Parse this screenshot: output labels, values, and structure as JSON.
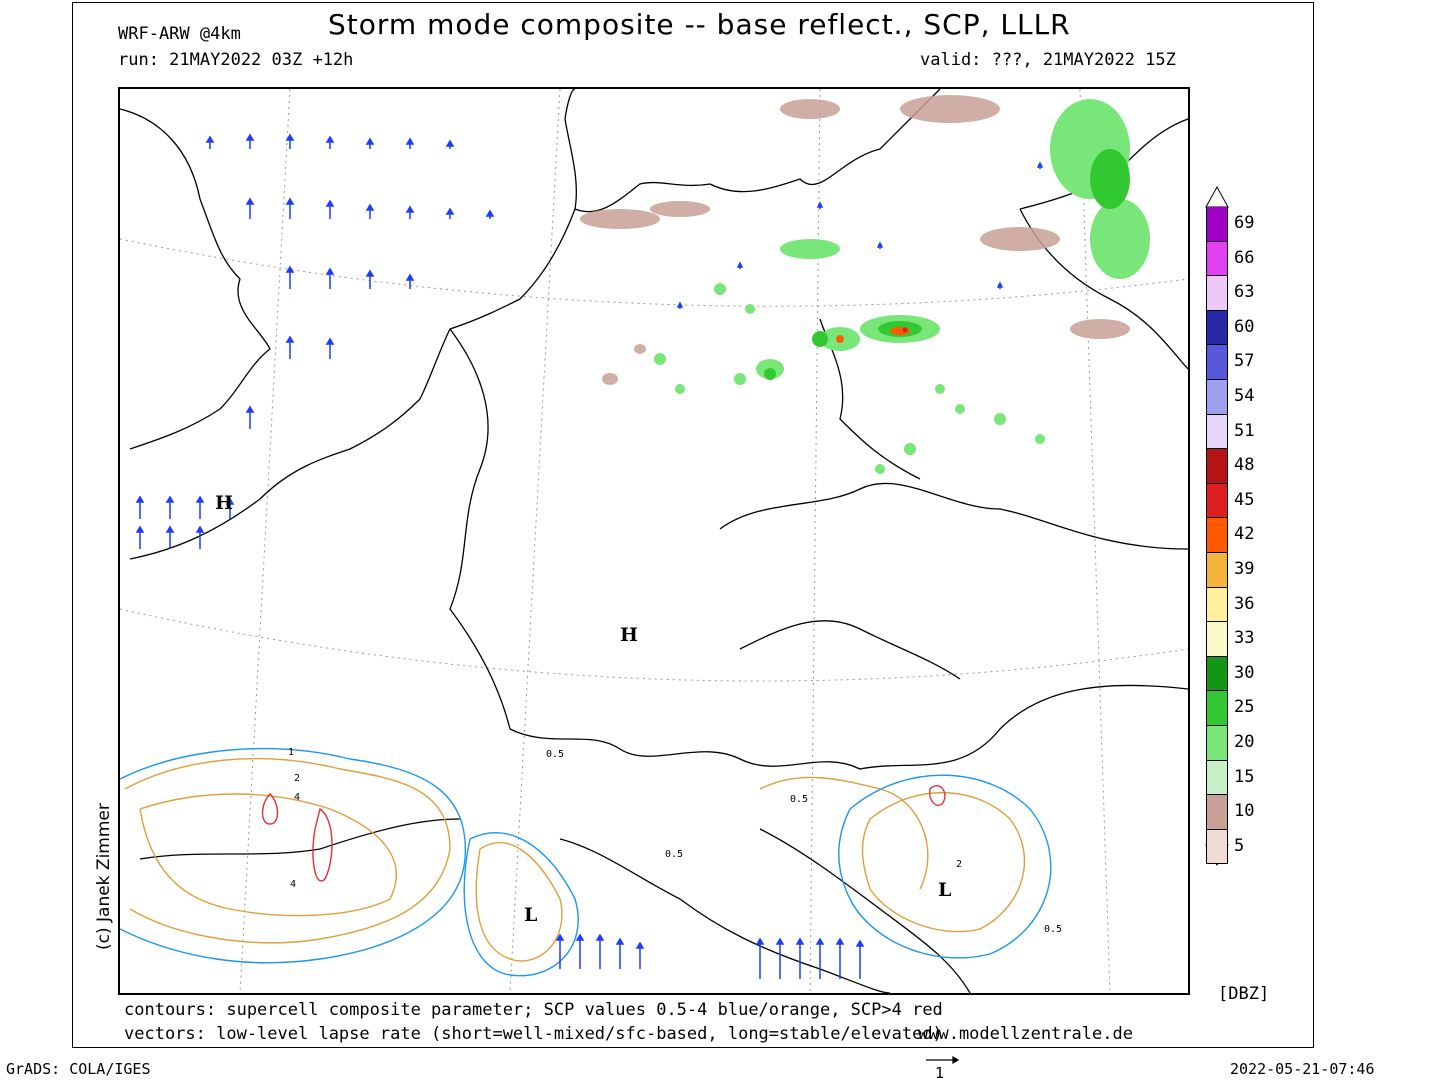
{
  "header": {
    "model": "WRF-ARW @4km",
    "title": "Storm mode composite -- base reflect., SCP, LLLR",
    "run": "run: 21MAY2022 03Z +12h",
    "valid": "valid: ???, 21MAY2022 15Z"
  },
  "map": {
    "pressure_labels": [
      "H",
      "H",
      "L",
      "L"
    ],
    "contour_labels": [
      "0.5",
      "1",
      "2",
      "4"
    ]
  },
  "colorbar": {
    "unit": "[DBZ]",
    "levels": [
      "69",
      "66",
      "63",
      "60",
      "57",
      "54",
      "51",
      "48",
      "45",
      "42",
      "39",
      "36",
      "33",
      "30",
      "25",
      "20",
      "15",
      "10",
      "5"
    ],
    "colors": [
      "#a000c8",
      "#e040f0",
      "#ecc8f8",
      "#2828a8",
      "#5858dc",
      "#a0a0f0",
      "#e6d6f8",
      "#b41414",
      "#dc1e1e",
      "#ff5a00",
      "#f5b43c",
      "#fff0a0",
      "#fafac8",
      "#149614",
      "#32c832",
      "#78e678",
      "#c8f0c8",
      "#c8a096",
      "#f0dcd2"
    ]
  },
  "footer": {
    "contours_note": "contours: supercell composite parameter; SCP values 0.5-4 blue/orange, SCP>4 red",
    "vectors_note": "vectors: low-level lapse rate (short=well-mixed/sfc-based, long=stable/elevated)",
    "site": "www.modellzentrale.de",
    "credit": "(c) Janek Zimmer",
    "grads": "GrADS: COLA/IGES",
    "timestamp": "2022-05-21-07:46",
    "ref_vector": "1"
  },
  "colors": {
    "vector": "#1e3cff",
    "scp_low": "#1e96f0",
    "scp_mid": "#dca03c",
    "scp_high": "#e03232",
    "border": "#000000"
  }
}
